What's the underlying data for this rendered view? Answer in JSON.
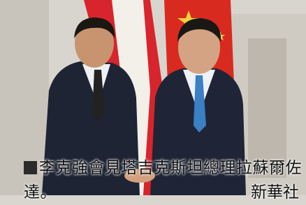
{
  "caption": {
    "text": "李克強會見塔吉克斯坦總理拉蘇爾佐達。",
    "credit": "新華社"
  }
}
